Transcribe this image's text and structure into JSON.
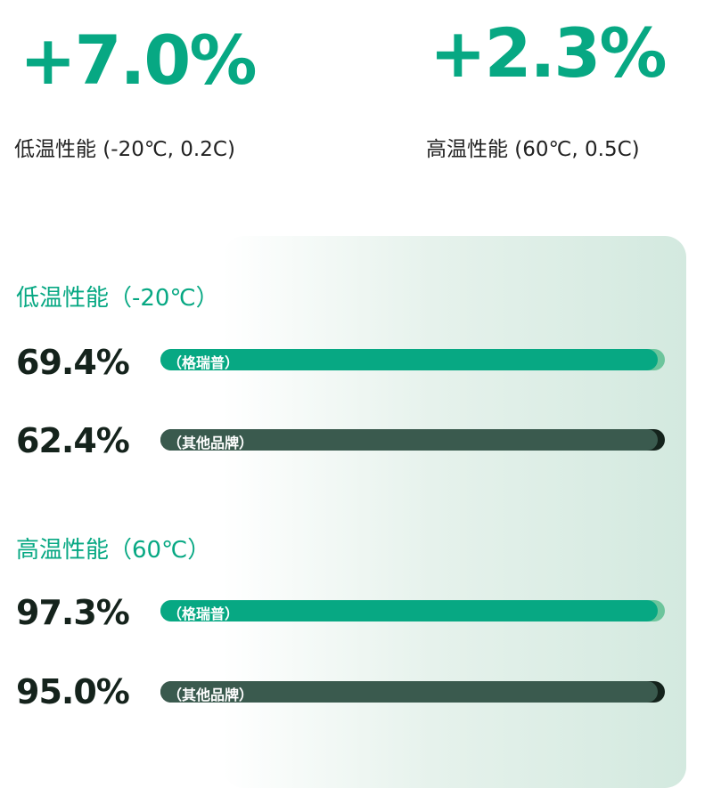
{
  "summary": [
    {
      "value": "+7.0%",
      "caption": "低温性能 (-20℃, 0.2C)"
    },
    {
      "value": "+2.3%",
      "caption": "高温性能 (60℃, 0.5C)"
    }
  ],
  "colors": {
    "accent": "#07a883",
    "accent_light": "#6cc59c",
    "other": "#3a5a4e",
    "other_dark": "#14231c",
    "text": "#15231c"
  },
  "chart_data": [
    {
      "type": "bar",
      "title": "低温性能（-20℃）",
      "categories": [
        "（格瑞普）",
        "（其他品牌）"
      ],
      "values": [
        69.4,
        62.4
      ],
      "value_labels": [
        "69.4%",
        "62.4%"
      ]
    },
    {
      "type": "bar",
      "title": "高温性能（60℃）",
      "categories": [
        "（格瑞普）",
        "（其他品牌）"
      ],
      "values": [
        97.3,
        95.0
      ],
      "value_labels": [
        "97.3%",
        "95.0%"
      ]
    }
  ]
}
